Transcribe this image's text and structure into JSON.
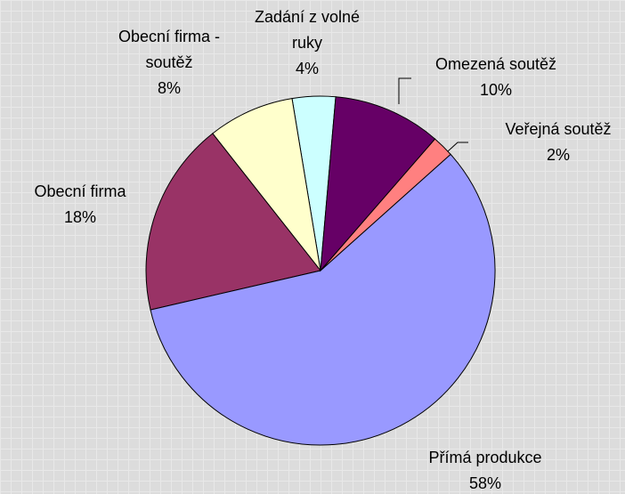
{
  "chart_data": {
    "type": "pie",
    "categories": [
      "Omezená soutěž",
      "Veřejná soutěž",
      "Přímá produkce",
      "Obecní firma",
      "Obecní firma - soutěž",
      "Zadání z volné ruky"
    ],
    "values": [
      10,
      2,
      58,
      18,
      8,
      4
    ],
    "value_labels": [
      "10%",
      "2%",
      "58%",
      "18%",
      "8%",
      "4%"
    ],
    "colors": [
      "#660066",
      "#ff8080",
      "#9999ff",
      "#993366",
      "#ffffcc",
      "#ccffff"
    ]
  }
}
